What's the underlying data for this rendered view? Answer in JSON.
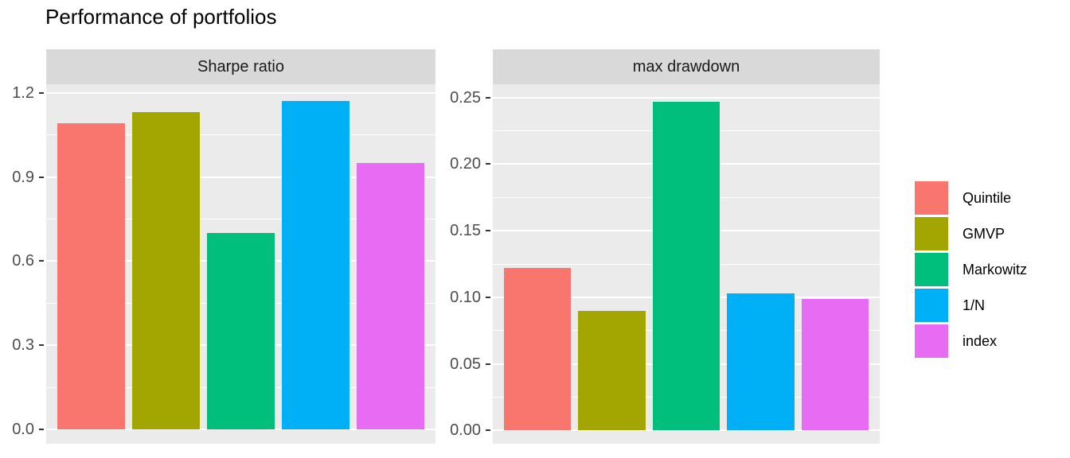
{
  "title": "Performance of portfolios",
  "legend": {
    "items": [
      {
        "label": "Quintile",
        "color": "#F8766D"
      },
      {
        "label": "GMVP",
        "color": "#A3A500"
      },
      {
        "label": "Markowitz",
        "color": "#00BF7D"
      },
      {
        "label": "1/N",
        "color": "#00B0F6"
      },
      {
        "label": "index",
        "color": "#E76BF3"
      }
    ]
  },
  "chart_data": {
    "type": "bar",
    "title": "Performance of portfolios",
    "categories": [
      "Quintile",
      "GMVP",
      "Markowitz",
      "1/N",
      "index"
    ],
    "colors": [
      "#F8766D",
      "#A3A500",
      "#00BF7D",
      "#00B0F6",
      "#E76BF3"
    ],
    "facets": [
      {
        "label": "Sharpe ratio",
        "values": [
          1.09,
          1.13,
          0.7,
          1.17,
          0.95
        ],
        "ylim": [
          -0.05,
          1.23
        ],
        "ticks": [
          0.0,
          0.3,
          0.6,
          0.9,
          1.2
        ],
        "tick_labels": [
          "0.0",
          "0.3",
          "0.6",
          "0.9",
          "1.2"
        ],
        "minor_ticks": [
          0.15,
          0.45,
          0.75,
          1.05
        ]
      },
      {
        "label": "max drawdown",
        "values": [
          0.122,
          0.09,
          0.247,
          0.103,
          0.099
        ],
        "ylim": [
          -0.01,
          0.26
        ],
        "ticks": [
          0.0,
          0.05,
          0.1,
          0.15,
          0.2,
          0.25
        ],
        "tick_labels": [
          "0.00",
          "0.05",
          "0.10",
          "0.15",
          "0.20",
          "0.25"
        ],
        "minor_ticks": [
          0.025,
          0.075,
          0.125,
          0.175,
          0.225
        ]
      }
    ],
    "xlabel": "",
    "ylabel": "",
    "grid": true,
    "legend_position": "right",
    "bar_width_ratio": 0.9,
    "panel_bg": "#EBEBEB",
    "strip_bg": "#D9D9D9",
    "grid_color": "#FFFFFF",
    "tick_text_color": "#4D4D4D"
  }
}
